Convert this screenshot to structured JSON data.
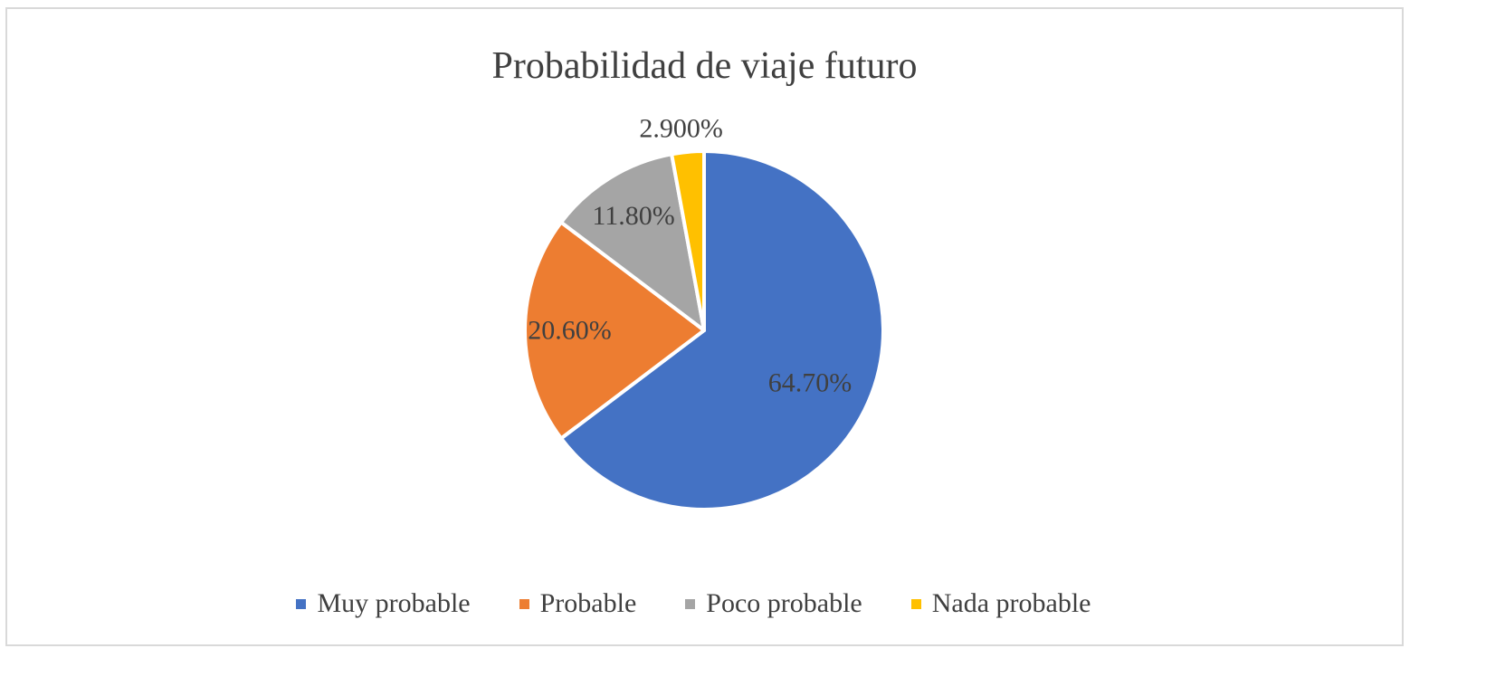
{
  "chart_data": {
    "type": "pie",
    "title": "Probabilidad de viaje futuro",
    "categories": [
      "Muy probable",
      "Probable",
      "Poco probable",
      "Nada probable"
    ],
    "values": [
      64.7,
      20.6,
      11.8,
      2.9
    ],
    "labels": [
      "64.70%",
      "20.60%",
      "11.80%",
      "2.900%"
    ],
    "colors": [
      "#4472C4",
      "#ED7D31",
      "#A5A5A5",
      "#FFC000"
    ],
    "legend_position": "bottom",
    "start_angle": "12 o'clock",
    "direction": "clockwise"
  }
}
